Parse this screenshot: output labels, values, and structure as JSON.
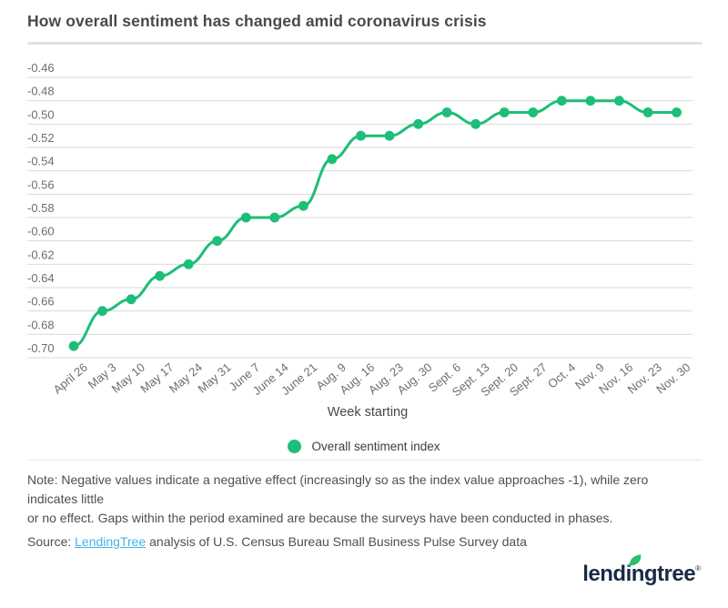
{
  "header": {
    "title": "How overall sentiment has changed amid coronavirus crisis"
  },
  "chart_data": {
    "type": "line",
    "title": "How overall sentiment has changed amid coronavirus crisis",
    "xlabel": "Week starting",
    "ylabel": "",
    "ylim": [
      -0.7,
      -0.46
    ],
    "ytick_step": 0.02,
    "ytick_labels": [
      "-0.46",
      "-0.48",
      "-0.50",
      "-0.52",
      "-0.54",
      "-0.56",
      "-0.58",
      "-0.60",
      "-0.62",
      "-0.64",
      "-0.66",
      "-0.68",
      "-0.70"
    ],
    "grid": true,
    "legend_position": "bottom",
    "categories": [
      "April 26",
      "May 3",
      "May 10",
      "May 17",
      "May 24",
      "May 31",
      "June 7",
      "June 14",
      "June 21",
      "Aug. 9",
      "Aug. 16",
      "Aug. 23",
      "Aug. 30",
      "Sept. 6",
      "Sept. 13",
      "Sept. 20",
      "Sept. 27",
      "Oct. 4",
      "Nov. 9",
      "Nov. 16",
      "Nov. 23",
      "Nov. 30"
    ],
    "series": [
      {
        "name": "Overall sentiment index",
        "values": [
          -0.69,
          -0.66,
          -0.65,
          -0.63,
          -0.62,
          -0.6,
          -0.58,
          -0.58,
          -0.57,
          -0.53,
          -0.51,
          -0.51,
          -0.5,
          -0.49,
          -0.5,
          -0.49,
          -0.49,
          -0.48,
          -0.48,
          -0.48,
          -0.49,
          -0.49
        ]
      }
    ]
  },
  "legend": {
    "label": "Overall sentiment index"
  },
  "note": {
    "lines": [
      "Note: Negative values indicate a negative effect (increasingly so as the index value approaches -1), while zero indicates little",
      "or no effect. Gaps within the period examined are because the surveys have been conducted in phases."
    ]
  },
  "source": {
    "prefix": "Source: ",
    "link_text": "LendingTree",
    "suffix": " analysis of U.S. Census Bureau Small Business Pulse Survey data"
  },
  "logo": {
    "text": "lendingtree",
    "registered": "®"
  },
  "colors": {
    "accent_green": "#1dbe77",
    "gridline": "#d9d9d9",
    "axis_text": "#6e6e6e",
    "link_blue": "#45b4e8",
    "logo_navy": "#182b45",
    "leaf_green": "#2abf71"
  }
}
